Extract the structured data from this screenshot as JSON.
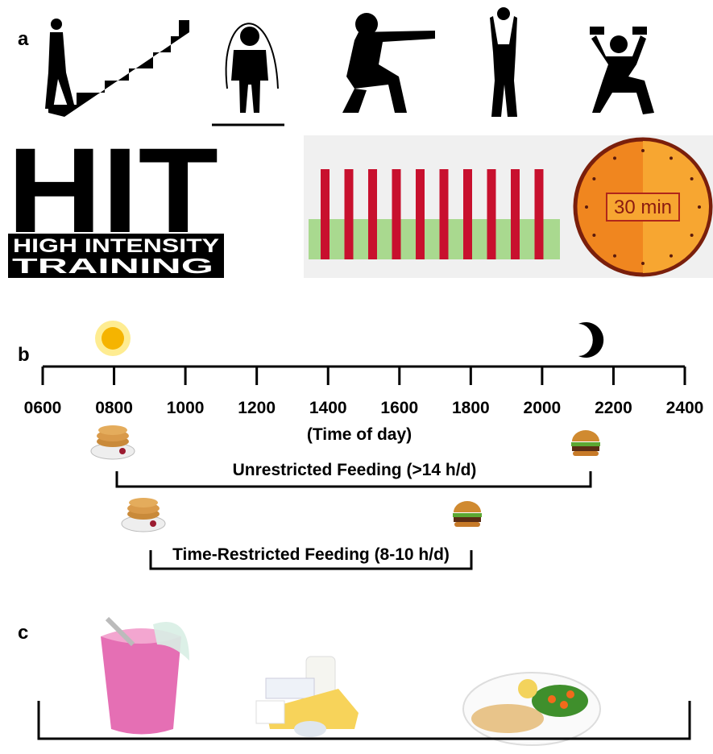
{
  "panel_a": {
    "label": "a",
    "logo": {
      "word": "HIT",
      "line1": "HIGH INTENSITY",
      "line2": "TRAINING"
    },
    "timer": "30 min"
  },
  "panel_b": {
    "label": "b",
    "ticks": [
      "0600",
      "0800",
      "1000",
      "1200",
      "1400",
      "1600",
      "1800",
      "2000",
      "2200",
      "2400"
    ],
    "axis_label": "(Time of day)",
    "unrestricted": "Unrestricted Feeding (>14 h/d)",
    "restricted": "Time-Restricted Feeding (8-10 h/d)"
  },
  "panel_c": {
    "label": "c"
  }
}
